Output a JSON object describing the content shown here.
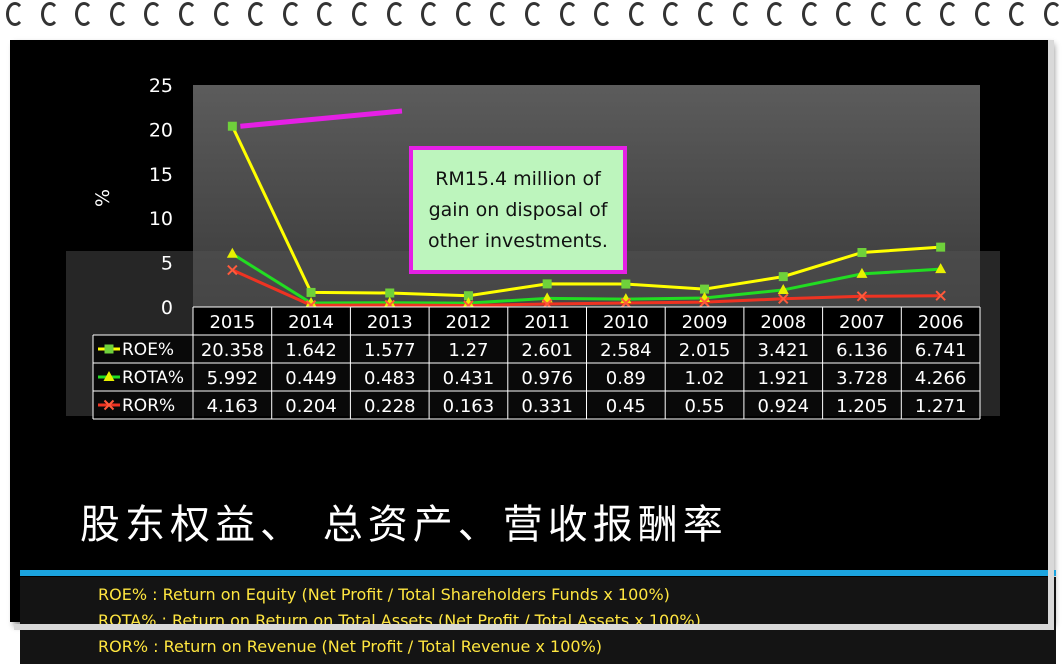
{
  "callout": {
    "text": "RM15.4 million of gain on disposal of other investments."
  },
  "title_cn": "股东权益、 总资产、营收报酬率",
  "definitions": [
    "ROE% : Return on Equity (Net Profit / Total Shareholders Funds x 100%)",
    "ROTA% : Return on Return on Total Assets (Net Profit / Total Assets x 100%)",
    "ROR% : Return on Revenue (Net Profit / Total Revenue x 100%)"
  ],
  "colors": {
    "background": "#000000",
    "roe": "#ffff00",
    "rota": "#22dd22",
    "ror": "#ee3322",
    "callout_border": "#e520e5",
    "callout_fill": "#bdf5bd",
    "accent_bar": "#1ba3de",
    "definitions_text": "#ffe640"
  },
  "chart_data": {
    "type": "line",
    "title": "",
    "xlabel": "",
    "ylabel": "%",
    "ylim": [
      0,
      25
    ],
    "yticks": [
      0,
      5,
      10,
      15,
      20,
      25
    ],
    "grid": false,
    "legend": "data-table-left",
    "categories": [
      "2015",
      "2014",
      "2013",
      "2012",
      "2011",
      "2010",
      "2009",
      "2008",
      "2007",
      "2006"
    ],
    "series": [
      {
        "name": "ROE%",
        "values": [
          20.358,
          1.642,
          1.577,
          1.27,
          2.601,
          2.584,
          2.015,
          3.421,
          6.136,
          6.741
        ],
        "labels": [
          "20.358",
          "1.642",
          "1.577",
          "1.27",
          "2.601",
          "2.584",
          "2.015",
          "3.421",
          "6.136",
          "6.741"
        ],
        "marker": "square"
      },
      {
        "name": "ROTA%",
        "values": [
          5.992,
          0.449,
          0.483,
          0.431,
          0.976,
          0.89,
          1.02,
          1.921,
          3.728,
          4.266
        ],
        "labels": [
          "5.992",
          "0.449",
          "0.483",
          "0.431",
          "0.976",
          "0.89",
          "1.02",
          "1.921",
          "3.728",
          "4.266"
        ],
        "marker": "triangle"
      },
      {
        "name": "ROR%",
        "values": [
          4.163,
          0.204,
          0.228,
          0.163,
          0.331,
          0.45,
          0.55,
          0.924,
          1.205,
          1.271
        ],
        "labels": [
          "4.163",
          "0.204",
          "0.228",
          "0.163",
          "0.331",
          "0.45",
          "0.55",
          "0.924",
          "1.205",
          "1.271"
        ],
        "marker": "x"
      }
    ]
  }
}
